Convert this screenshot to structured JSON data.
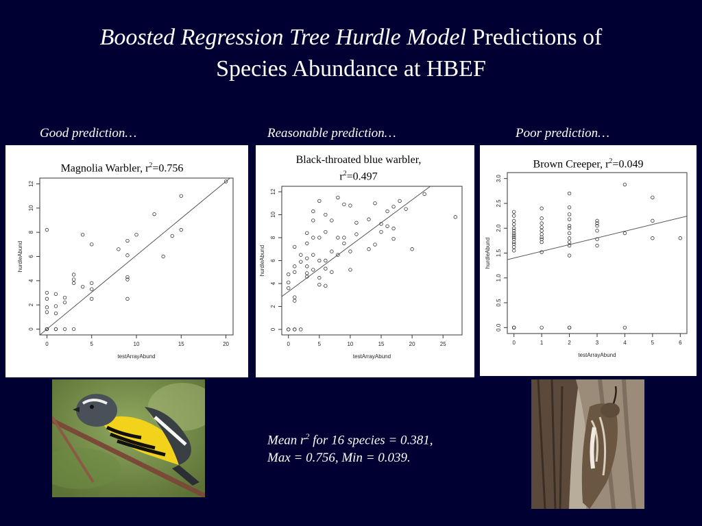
{
  "title": {
    "italic": "Boosted Regression Tree Hurdle Model",
    "rest": " Predictions of",
    "line2": "Species Abundance at HBEF"
  },
  "captions": {
    "good": "Good prediction…",
    "reasonable": "Reasonable prediction…",
    "poor": "Poor prediction…"
  },
  "summary": {
    "line1_a": "Mean r",
    "line1_sup": "2",
    "line1_b": " for 16 species = 0.381,",
    "line2": "Max = 0.756, Min = 0.039."
  },
  "colors": {
    "background": "#000033",
    "panel": "#ffffff",
    "points": "#333333"
  },
  "chart_data": [
    {
      "type": "scatter",
      "title_a": "Magnolia Warbler, r",
      "title_sup": "2",
      "title_b": "=0.756",
      "xlabel": "testArrayAbund",
      "ylabel": "hurdleAbund",
      "xlim": [
        0,
        20
      ],
      "ylim": [
        0,
        12
      ],
      "xticks": [
        0,
        5,
        10,
        15,
        20
      ],
      "yticks": [
        0,
        2,
        4,
        6,
        8,
        10,
        12
      ],
      "regression": {
        "intercept": 0.0,
        "slope": 0.61
      },
      "points": [
        [
          0,
          0
        ],
        [
          0,
          0
        ],
        [
          0,
          0
        ],
        [
          0,
          0
        ],
        [
          1,
          0
        ],
        [
          1,
          0
        ],
        [
          2,
          0
        ],
        [
          3,
          0
        ],
        [
          0,
          1.4
        ],
        [
          0,
          1.8
        ],
        [
          0,
          2.5
        ],
        [
          0,
          3.0
        ],
        [
          0,
          8.2
        ],
        [
          1,
          1.3
        ],
        [
          1,
          1.9
        ],
        [
          1,
          2.9
        ],
        [
          2,
          2.2
        ],
        [
          2,
          2.6
        ],
        [
          3,
          3.8
        ],
        [
          3,
          4.1
        ],
        [
          3,
          4.5
        ],
        [
          4,
          3.5
        ],
        [
          4,
          7.8
        ],
        [
          5,
          2.5
        ],
        [
          5,
          3.3
        ],
        [
          5,
          3.8
        ],
        [
          5,
          7.0
        ],
        [
          8,
          6.6
        ],
        [
          9,
          2.5
        ],
        [
          9,
          4.1
        ],
        [
          9,
          4.3
        ],
        [
          9,
          6.1
        ],
        [
          9,
          7.3
        ],
        [
          10,
          7.8
        ],
        [
          12,
          9.5
        ],
        [
          13,
          6.0
        ],
        [
          14,
          7.7
        ],
        [
          15,
          8.2
        ],
        [
          15,
          11.0
        ],
        [
          20,
          12.2
        ]
      ]
    },
    {
      "type": "scatter",
      "title_line1": "Black-throated blue warbler,",
      "title_a": "r",
      "title_sup": "2",
      "title_b": "=0.497",
      "xlabel": "testArrayAbund",
      "ylabel": "hurdleAbund",
      "xlim": [
        0,
        27
      ],
      "ylim": [
        0,
        12
      ],
      "xticks": [
        0,
        5,
        10,
        15,
        20,
        25
      ],
      "yticks": [
        0,
        2,
        4,
        6,
        8,
        10,
        12
      ],
      "regression": {
        "intercept": 3.3,
        "slope": 0.4
      },
      "points": [
        [
          0,
          0
        ],
        [
          0,
          0
        ],
        [
          1,
          0
        ],
        [
          1,
          0
        ],
        [
          2,
          0
        ],
        [
          0,
          3.6
        ],
        [
          0,
          4.1
        ],
        [
          0,
          4.8
        ],
        [
          1,
          2.5
        ],
        [
          1,
          2.8
        ],
        [
          1,
          5.0
        ],
        [
          1,
          5.5
        ],
        [
          1,
          7.2
        ],
        [
          2,
          5.9
        ],
        [
          2,
          6.5
        ],
        [
          3,
          4.6
        ],
        [
          3,
          4.9
        ],
        [
          3,
          5.5
        ],
        [
          3,
          6.2
        ],
        [
          3,
          7.5
        ],
        [
          3,
          8.4
        ],
        [
          4,
          5.2
        ],
        [
          4,
          6.5
        ],
        [
          4,
          8.0
        ],
        [
          4,
          9.5
        ],
        [
          4,
          10.3
        ],
        [
          5,
          3.9
        ],
        [
          5,
          4.5
        ],
        [
          5,
          6.0
        ],
        [
          5,
          8.0
        ],
        [
          5,
          11.2
        ],
        [
          6,
          3.8
        ],
        [
          6,
          5.3
        ],
        [
          6,
          6.0
        ],
        [
          6,
          8.5
        ],
        [
          6,
          10.0
        ],
        [
          7,
          5.0
        ],
        [
          7,
          6.8
        ],
        [
          7,
          9.5
        ],
        [
          8,
          6.5
        ],
        [
          8,
          8.0
        ],
        [
          8,
          11.5
        ],
        [
          9,
          7.5
        ],
        [
          9,
          8.0
        ],
        [
          9,
          10.9
        ],
        [
          10,
          5.2
        ],
        [
          10,
          6.8
        ],
        [
          10,
          10.8
        ],
        [
          11,
          8.3
        ],
        [
          11,
          9.3
        ],
        [
          13,
          7.0
        ],
        [
          13,
          9.6
        ],
        [
          14,
          7.4
        ],
        [
          14,
          11.0
        ],
        [
          15,
          8.5
        ],
        [
          15,
          9.2
        ],
        [
          16,
          9.0
        ],
        [
          16,
          10.3
        ],
        [
          17,
          7.9
        ],
        [
          17,
          8.8
        ],
        [
          17,
          10.7
        ],
        [
          18,
          11.2
        ],
        [
          19,
          10.5
        ],
        [
          20,
          7.0
        ],
        [
          22,
          11.8
        ],
        [
          27,
          9.8
        ]
      ]
    },
    {
      "type": "scatter",
      "title_a": "Brown Creeper, r",
      "title_sup": "2",
      "title_b": "=0.049",
      "xlabel": "testArrayAbund",
      "ylabel": "hurdleAbund",
      "xlim": [
        0,
        6
      ],
      "ylim": [
        0,
        3
      ],
      "xticks": [
        0,
        1,
        2,
        3,
        4,
        5,
        6
      ],
      "yticks": [
        0.0,
        0.5,
        1.0,
        1.5,
        2.0,
        2.5,
        3.0
      ],
      "ytickfmt": 1,
      "regression": {
        "intercept": 1.4,
        "slope": 0.135
      },
      "points": [
        [
          0,
          0
        ],
        [
          0,
          0
        ],
        [
          0,
          0
        ],
        [
          1,
          0
        ],
        [
          2,
          0
        ],
        [
          2,
          0
        ],
        [
          4,
          0
        ],
        [
          0,
          1.55
        ],
        [
          0,
          1.62
        ],
        [
          0,
          1.68
        ],
        [
          0,
          1.72
        ],
        [
          0,
          1.78
        ],
        [
          0,
          1.82
        ],
        [
          0,
          1.86
        ],
        [
          0,
          1.9
        ],
        [
          0,
          1.95
        ],
        [
          0,
          2.0
        ],
        [
          0,
          2.08
        ],
        [
          0,
          2.15
        ],
        [
          0,
          2.25
        ],
        [
          0,
          2.33
        ],
        [
          1,
          1.52
        ],
        [
          1,
          1.72
        ],
        [
          1,
          1.78
        ],
        [
          1,
          1.82
        ],
        [
          1,
          1.88
        ],
        [
          1,
          1.95
        ],
        [
          1,
          2.02
        ],
        [
          1,
          2.1
        ],
        [
          1,
          2.2
        ],
        [
          1,
          2.4
        ],
        [
          2,
          1.45
        ],
        [
          2,
          1.65
        ],
        [
          2,
          1.72
        ],
        [
          2,
          1.8
        ],
        [
          2,
          1.9
        ],
        [
          2,
          2.0
        ],
        [
          2,
          2.05
        ],
        [
          2,
          2.18
        ],
        [
          2,
          2.28
        ],
        [
          2,
          2.42
        ],
        [
          2,
          2.7
        ],
        [
          3,
          1.65
        ],
        [
          3,
          1.78
        ],
        [
          3,
          1.95
        ],
        [
          3,
          2.05
        ],
        [
          3,
          2.1
        ],
        [
          3,
          2.15
        ],
        [
          4,
          1.9
        ],
        [
          4,
          2.88
        ],
        [
          5,
          1.8
        ],
        [
          5,
          2.15
        ],
        [
          5,
          2.62
        ],
        [
          6,
          1.8
        ]
      ]
    }
  ]
}
